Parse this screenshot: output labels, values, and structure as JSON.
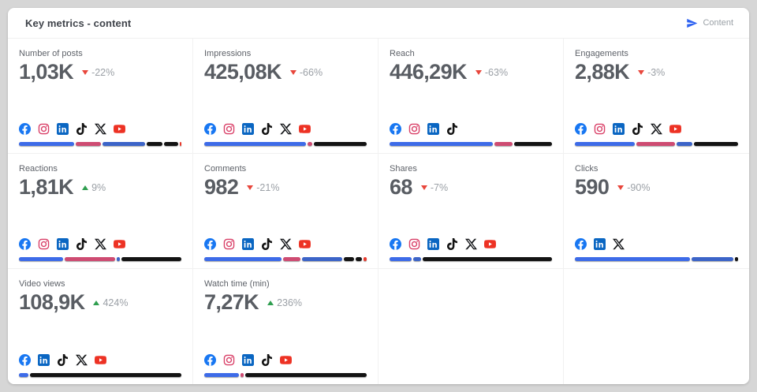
{
  "header": {
    "title": "Key metrics - content",
    "channel": {
      "label": "Content",
      "icon": "send-icon",
      "icon_color": "#2e62f1"
    }
  },
  "colors": {
    "up": "#2f9e4f",
    "down": "#e8463c",
    "bar": {
      "facebook": "#3d6be8",
      "instagram": "#ce4b72",
      "linkedin": "#3c64c8",
      "tiktok": "#131313",
      "x": "#131313",
      "youtube": "#e83a2d"
    }
  },
  "grid": {
    "total_cells": 12
  },
  "cards": [
    {
      "label": "Number of posts",
      "value": "1,03K",
      "change": "-22%",
      "direction": "down",
      "platforms": [
        "facebook",
        "instagram",
        "linkedin",
        "tiktok",
        "x",
        "youtube"
      ],
      "bar": [
        {
          "platform": "facebook",
          "pct": 35
        },
        {
          "platform": "instagram",
          "pct": 16
        },
        {
          "platform": "linkedin",
          "pct": 27
        },
        {
          "platform": "tiktok",
          "pct": 10
        },
        {
          "platform": "x",
          "pct": 9
        },
        {
          "platform": "youtube",
          "pct": 1
        }
      ]
    },
    {
      "label": "Impressions",
      "value": "425,08K",
      "change": "-66%",
      "direction": "down",
      "platforms": [
        "facebook",
        "instagram",
        "linkedin",
        "tiktok",
        "x",
        "youtube"
      ],
      "bar": [
        {
          "platform": "facebook",
          "pct": 63
        },
        {
          "platform": "instagram",
          "pct": 3
        },
        {
          "platform": "tiktok",
          "pct": 33
        }
      ]
    },
    {
      "label": "Reach",
      "value": "446,29K",
      "change": "-63%",
      "direction": "down",
      "platforms": [
        "facebook",
        "instagram",
        "linkedin",
        "tiktok"
      ],
      "bar": [
        {
          "platform": "facebook",
          "pct": 65
        },
        {
          "platform": "instagram",
          "pct": 11
        },
        {
          "platform": "tiktok",
          "pct": 24
        }
      ]
    },
    {
      "label": "Engagements",
      "value": "2,88K",
      "change": "-3%",
      "direction": "down",
      "platforms": [
        "facebook",
        "instagram",
        "linkedin",
        "tiktok",
        "x",
        "youtube"
      ],
      "bar": [
        {
          "platform": "facebook",
          "pct": 38
        },
        {
          "platform": "instagram",
          "pct": 24
        },
        {
          "platform": "linkedin",
          "pct": 10
        },
        {
          "platform": "tiktok",
          "pct": 28
        }
      ]
    },
    {
      "label": "Reactions",
      "value": "1,81K",
      "change": "9%",
      "direction": "up",
      "platforms": [
        "facebook",
        "instagram",
        "linkedin",
        "tiktok",
        "x",
        "youtube"
      ],
      "bar": [
        {
          "platform": "facebook",
          "pct": 28
        },
        {
          "platform": "instagram",
          "pct": 32
        },
        {
          "platform": "linkedin",
          "pct": 2
        },
        {
          "platform": "tiktok",
          "pct": 38
        }
      ]
    },
    {
      "label": "Comments",
      "value": "982",
      "change": "-21%",
      "direction": "down",
      "platforms": [
        "facebook",
        "instagram",
        "linkedin",
        "tiktok",
        "x",
        "youtube"
      ],
      "bar": [
        {
          "platform": "facebook",
          "pct": 50
        },
        {
          "platform": "instagram",
          "pct": 11
        },
        {
          "platform": "linkedin",
          "pct": 26
        },
        {
          "platform": "tiktok",
          "pct": 7
        },
        {
          "platform": "x",
          "pct": 4
        },
        {
          "platform": "youtube",
          "pct": 2
        }
      ]
    },
    {
      "label": "Shares",
      "value": "68",
      "change": "-7%",
      "direction": "down",
      "platforms": [
        "facebook",
        "instagram",
        "linkedin",
        "tiktok",
        "x",
        "youtube"
      ],
      "bar": [
        {
          "platform": "facebook",
          "pct": 14
        },
        {
          "platform": "linkedin",
          "pct": 5
        },
        {
          "platform": "tiktok",
          "pct": 81
        }
      ]
    },
    {
      "label": "Clicks",
      "value": "590",
      "change": "-90%",
      "direction": "down",
      "platforms": [
        "facebook",
        "linkedin",
        "x"
      ],
      "bar": [
        {
          "platform": "facebook",
          "pct": 72
        },
        {
          "platform": "linkedin",
          "pct": 26
        },
        {
          "platform": "x",
          "pct": 2
        }
      ]
    },
    {
      "label": "Video views",
      "value": "108,9K",
      "change": "424%",
      "direction": "up",
      "platforms": [
        "facebook",
        "linkedin",
        "tiktok",
        "x",
        "youtube"
      ],
      "bar": [
        {
          "platform": "facebook",
          "pct": 6
        },
        {
          "platform": "tiktok",
          "pct": 94
        }
      ]
    },
    {
      "label": "Watch time (min)",
      "value": "7,27K",
      "change": "236%",
      "direction": "up",
      "platforms": [
        "facebook",
        "instagram",
        "linkedin",
        "tiktok",
        "youtube"
      ],
      "bar": [
        {
          "platform": "facebook",
          "pct": 22
        },
        {
          "platform": "instagram",
          "pct": 2
        },
        {
          "platform": "tiktok",
          "pct": 76
        }
      ]
    }
  ]
}
